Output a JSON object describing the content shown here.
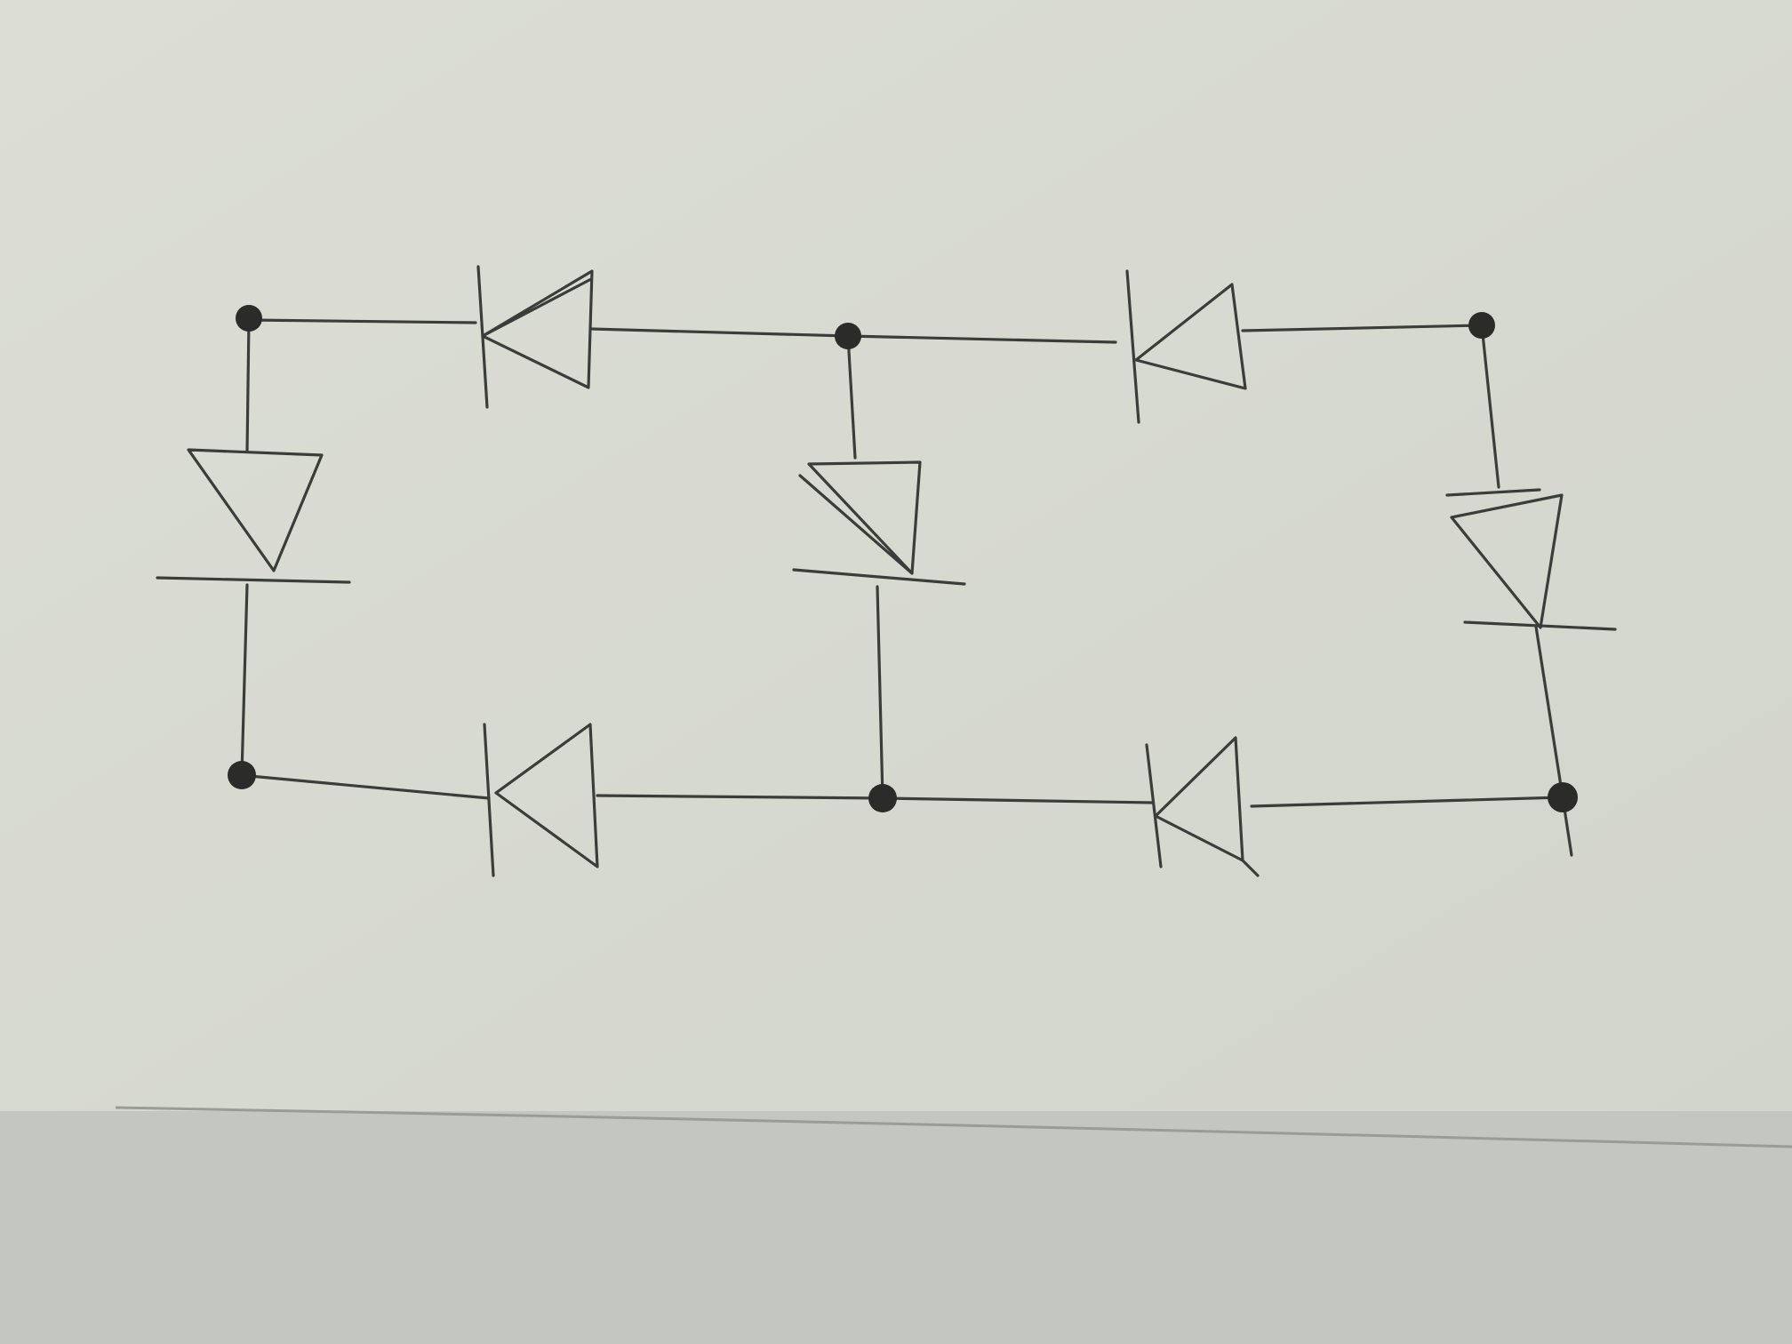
{
  "diagram": {
    "kind": "circuit",
    "component": "diode",
    "colors": {
      "paper_top": "#dcded6",
      "paper_mid": "#d2d5cc",
      "desk": "#c4c7c0",
      "ink": "#3b3d3a",
      "node": "#2b2c2a"
    },
    "nodes": [
      {
        "id": "top-left"
      },
      {
        "id": "top-middle"
      },
      {
        "id": "top-right"
      },
      {
        "id": "bottom-left"
      },
      {
        "id": "bottom-middle"
      },
      {
        "id": "bottom-right"
      }
    ],
    "diodes": [
      {
        "id": "d-top-left",
        "from": "top-middle",
        "to": "top-left",
        "anode": "top-middle",
        "cathode": "top-left"
      },
      {
        "id": "d-top-right",
        "from": "top-right",
        "to": "top-middle",
        "anode": "top-right",
        "cathode": "top-middle"
      },
      {
        "id": "d-bottom-left",
        "from": "bottom-middle",
        "to": "bottom-left",
        "anode": "bottom-middle",
        "cathode": "bottom-left"
      },
      {
        "id": "d-bottom-right",
        "from": "bottom-right",
        "to": "bottom-middle",
        "anode": "bottom-right",
        "cathode": "bottom-middle"
      },
      {
        "id": "d-left",
        "from": "top-left",
        "to": "bottom-left",
        "anode": "top-left",
        "cathode": "bottom-left"
      },
      {
        "id": "d-middle",
        "from": "top-middle",
        "to": "bottom-middle",
        "anode": "top-middle",
        "cathode": "bottom-middle"
      },
      {
        "id": "d-right",
        "from": "top-right",
        "to": "bottom-right",
        "anode": "top-right",
        "cathode": "bottom-right"
      }
    ]
  }
}
